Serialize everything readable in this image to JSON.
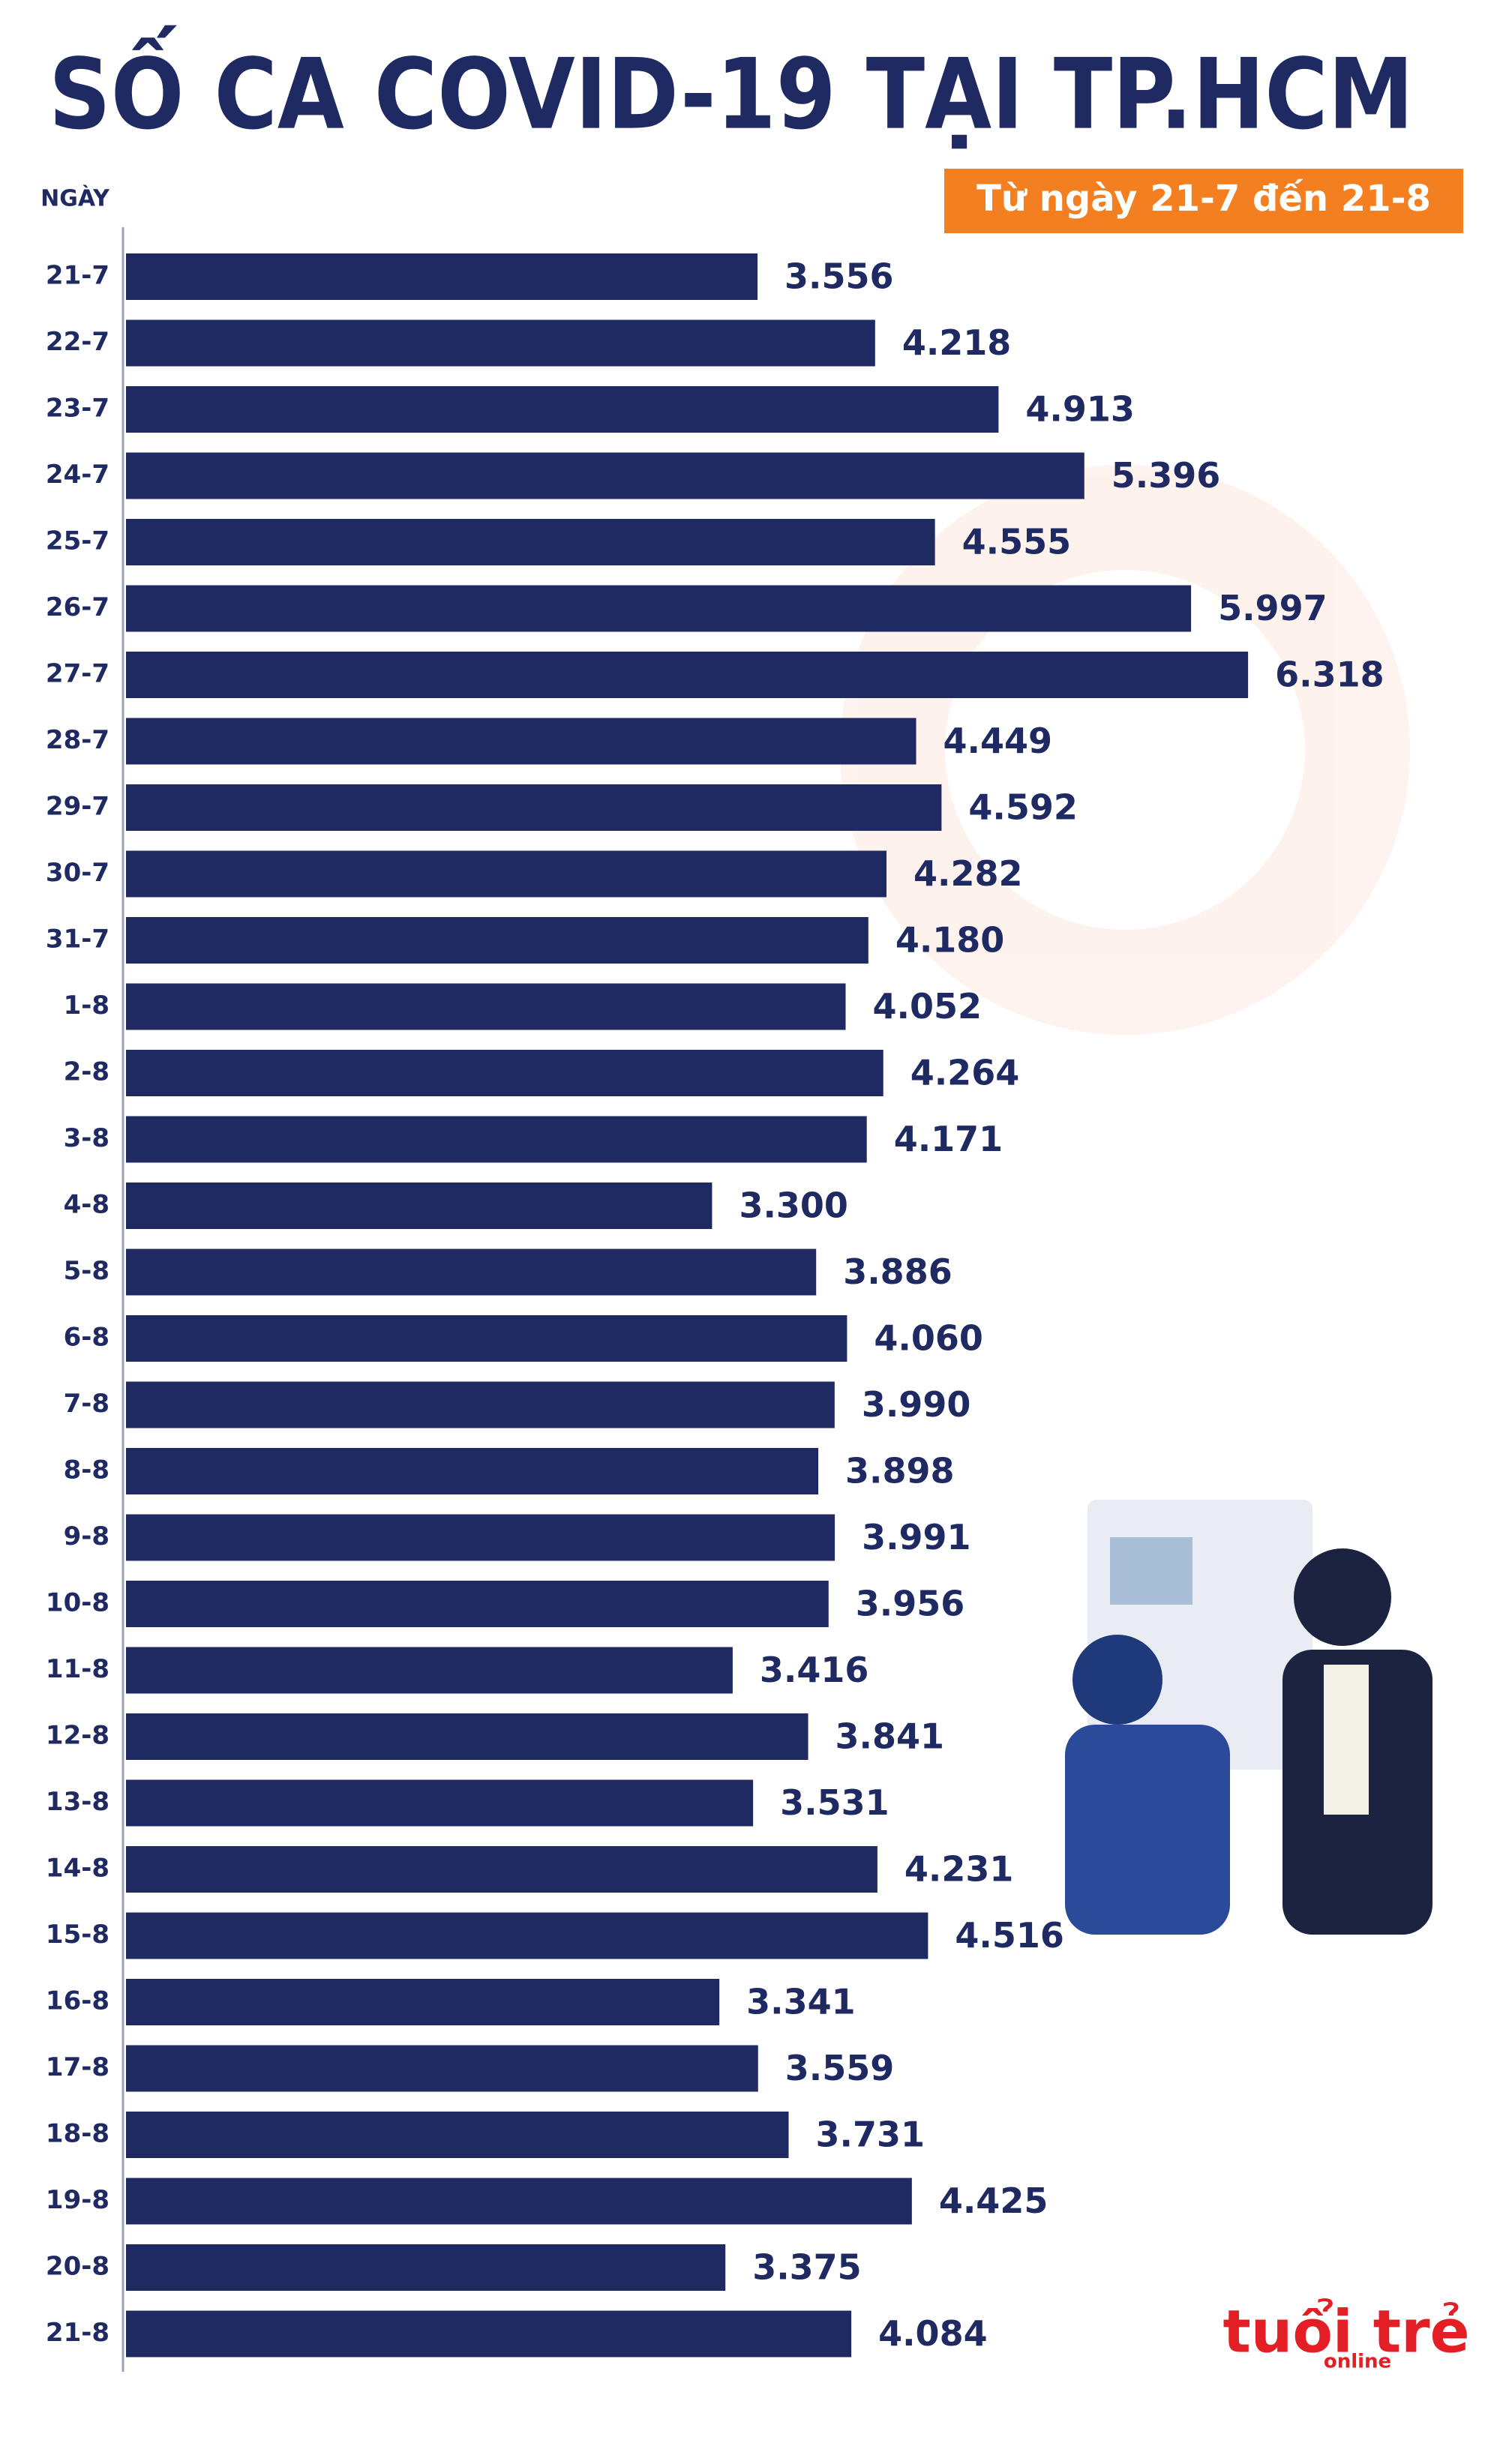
{
  "chart_data": {
    "type": "hbar",
    "title": "SỐ CA COVID-19 TẠI TP.HCM",
    "subtitle": "Từ ngày 21-7 đến 21-8",
    "y_label": "NGÀY",
    "categories": [
      "21-7",
      "22-7",
      "23-7",
      "24-7",
      "25-7",
      "26-7",
      "27-7",
      "28-7",
      "29-7",
      "30-7",
      "31-7",
      "1-8",
      "2-8",
      "3-8",
      "4-8",
      "5-8",
      "6-8",
      "7-8",
      "8-8",
      "9-8",
      "10-8",
      "11-8",
      "12-8",
      "13-8",
      "14-8",
      "15-8",
      "16-8",
      "17-8",
      "18-8",
      "19-8",
      "20-8",
      "21-8"
    ],
    "values": [
      3556,
      4218,
      4913,
      5396,
      4555,
      5997,
      6318,
      4449,
      4592,
      4282,
      4180,
      4052,
      4264,
      4171,
      3300,
      3886,
      4060,
      3990,
      3898,
      3991,
      3956,
      3416,
      3841,
      3531,
      4231,
      4516,
      3341,
      3559,
      3731,
      4425,
      3375,
      4084
    ],
    "value_labels": [
      "3.556",
      "4.218",
      "4.913",
      "5.396",
      "4.555",
      "5.997",
      "6.318",
      "4.449",
      "4.592",
      "4.282",
      "4.180",
      "4.052",
      "4.264",
      "4.171",
      "3.300",
      "3.886",
      "4.060",
      "3.990",
      "3.898",
      "3.991",
      "3.956",
      "3.416",
      "3.841",
      "3.531",
      "4.231",
      "4.516",
      "3.341",
      "3.559",
      "3.731",
      "4.425",
      "3.375",
      "4.084"
    ],
    "color": "#1f2a63",
    "logo": {
      "main": "tuổi trẻ",
      "sub": "online"
    }
  }
}
